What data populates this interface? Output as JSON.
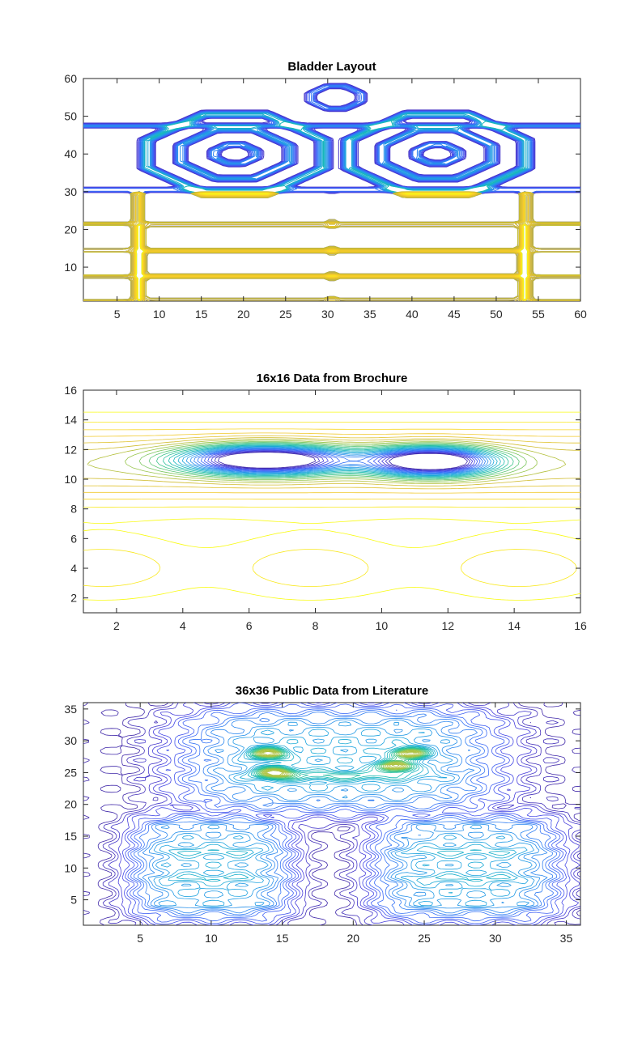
{
  "colors": {
    "background": "#ffffff",
    "axis": "#262626",
    "colormap": [
      "#3e26a8",
      "#4740e1",
      "#3a66f8",
      "#2a87f0",
      "#1ca6dd",
      "#16b9b5",
      "#3bc48a",
      "#8ac752",
      "#d0bc2f",
      "#f9cc2a",
      "#f9fb14"
    ]
  },
  "chart_data": [
    {
      "type": "contour",
      "title": "Bladder Layout",
      "xlabel": "",
      "ylabel": "",
      "xlim": [
        1,
        60
      ],
      "ylim": [
        1,
        60
      ],
      "xticks": [
        5,
        10,
        15,
        20,
        25,
        30,
        35,
        40,
        45,
        50,
        55,
        60
      ],
      "yticks": [
        10,
        20,
        30,
        40,
        50,
        60
      ],
      "grid": false,
      "features": {
        "octagons_outer": [
          [
            19,
            40
          ],
          [
            43,
            40
          ]
        ],
        "octagons_top": [
          [
            31,
            55
          ]
        ],
        "horizontal_bands_y": [
          47.5,
          30.5
        ],
        "lower_rectangles": [
          [
            7.5,
            53.5,
            21.5,
            1
          ],
          [
            7.5,
            53.5,
            14.5,
            7.5
          ]
        ]
      }
    },
    {
      "type": "contour",
      "title": "16x16 Data from Brochure",
      "xlabel": "",
      "ylabel": "",
      "xlim": [
        1,
        16
      ],
      "ylim": [
        1,
        16
      ],
      "xticks": [
        2,
        4,
        6,
        8,
        10,
        12,
        14,
        16
      ],
      "yticks": [
        2,
        4,
        6,
        8,
        10,
        12,
        14,
        16
      ],
      "grid": false,
      "features": {
        "peaks": [
          [
            6.5,
            11.3
          ],
          [
            11.5,
            11.2
          ]
        ]
      }
    },
    {
      "type": "contour",
      "title": "36x36 Public Data from Literature",
      "xlabel": "",
      "ylabel": "",
      "xlim": [
        1,
        36
      ],
      "ylim": [
        1,
        36
      ],
      "xticks": [
        5,
        10,
        15,
        20,
        25,
        30,
        35
      ],
      "yticks": [
        5,
        10,
        15,
        20,
        25,
        30,
        35
      ],
      "grid": false,
      "features": {
        "peaks": [
          [
            14,
            28
          ],
          [
            14.5,
            25
          ],
          [
            23,
            26
          ],
          [
            24,
            28
          ]
        ]
      }
    }
  ]
}
